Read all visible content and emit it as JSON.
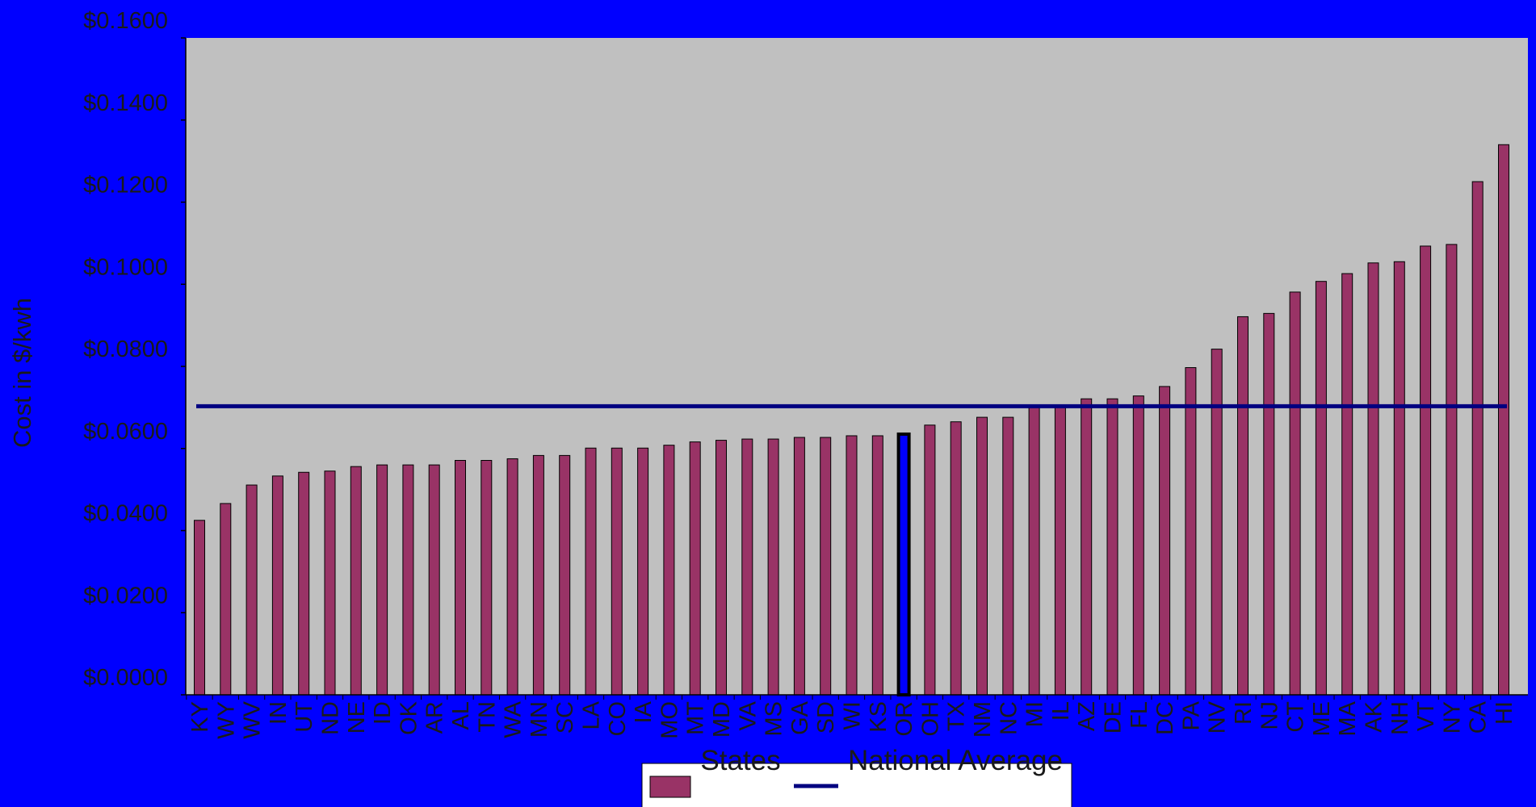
{
  "chart_data": {
    "type": "bar",
    "title": "",
    "xlabel": "",
    "ylabel": "Cost in $/kwh",
    "ylim": [
      0,
      0.16
    ],
    "y_tick_step": 0.02,
    "y_tick_format": "$0.0000",
    "grid": false,
    "legend_position": "bottom",
    "colors": {
      "background": "#0000FF",
      "plot_area": "#C0C0C0",
      "bar_fill": "#993366",
      "bar_stroke": "#000000",
      "average_line": "#000080",
      "highlight_fill": "#0000FF",
      "highlight_stroke": "#000000",
      "legend_box": "#FFFFFF"
    },
    "highlight_category": "OR",
    "categories": [
      "KY",
      "WY",
      "WV",
      "IN",
      "UT",
      "ND",
      "NE",
      "ID",
      "OK",
      "AR",
      "AL",
      "TN",
      "WA",
      "MN",
      "SC",
      "LA",
      "CO",
      "IA",
      "MO",
      "MT",
      "MD",
      "VA",
      "MS",
      "GA",
      "SD",
      "WI",
      "KS",
      "OR",
      "OH",
      "TX",
      "NM",
      "NC",
      "MI",
      "IL",
      "AZ",
      "DE",
      "FL",
      "DC",
      "PA",
      "NV",
      "RI",
      "NJ",
      "CT",
      "ME",
      "MA",
      "AK",
      "NH",
      "VT",
      "NY",
      "CA",
      "HI"
    ],
    "series": [
      {
        "name": "States",
        "type": "bar",
        "values": [
          0.0425,
          0.0466,
          0.0511,
          0.0533,
          0.0542,
          0.0545,
          0.0556,
          0.056,
          0.056,
          0.056,
          0.0571,
          0.0571,
          0.0575,
          0.0583,
          0.0583,
          0.0601,
          0.0601,
          0.0601,
          0.0608,
          0.0616,
          0.062,
          0.0623,
          0.0623,
          0.0627,
          0.0627,
          0.0631,
          0.0631,
          0.0635,
          0.0657,
          0.0665,
          0.0676,
          0.0676,
          0.0702,
          0.0702,
          0.0721,
          0.0721,
          0.0728,
          0.0751,
          0.0797,
          0.0842,
          0.0921,
          0.0929,
          0.0981,
          0.1007,
          0.1026,
          0.1052,
          0.1055,
          0.1093,
          0.1097,
          0.125,
          0.134
        ]
      },
      {
        "name": "National Average",
        "type": "line",
        "value": 0.0703
      }
    ]
  }
}
